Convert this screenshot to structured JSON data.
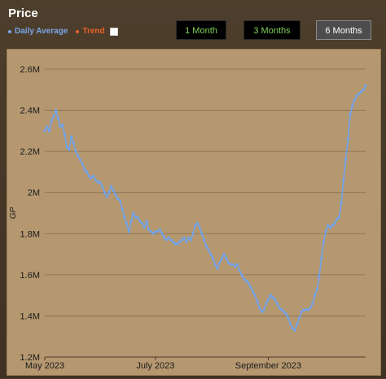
{
  "header": {
    "title": "Price",
    "legend_avg": "Daily Average",
    "legend_trend": "Trend"
  },
  "range_buttons": {
    "one_month": "1 Month",
    "three_months": "3 Months",
    "six_months": "6 Months",
    "active": "6 Months"
  },
  "colors": {
    "line": "#6fa3ee",
    "trend": "#e8632a",
    "background": "#b59870"
  },
  "chart_data": {
    "type": "line",
    "ylabel": "GP",
    "ylim": [
      1200000,
      2600000
    ],
    "y_ticks": [
      1200000,
      1400000,
      1600000,
      1800000,
      2000000,
      2200000,
      2400000,
      2600000
    ],
    "y_tick_labels": [
      "1.2M",
      "1.4M",
      "1.6M",
      "1.8M",
      "2M",
      "2.2M",
      "2.4M",
      "2.6M"
    ],
    "x_tick_labels": [
      "May 2023",
      "July 2023",
      "September 2023"
    ],
    "grid": true,
    "series": [
      {
        "name": "Daily Average",
        "values": [
          2300000,
          2320000,
          2300000,
          2350000,
          2370000,
          2400000,
          2360000,
          2320000,
          2330000,
          2280000,
          2220000,
          2210000,
          2270000,
          2240000,
          2200000,
          2180000,
          2160000,
          2140000,
          2110000,
          2100000,
          2080000,
          2070000,
          2080000,
          2060000,
          2050000,
          2050000,
          2030000,
          2000000,
          1980000,
          2000000,
          2030000,
          2010000,
          1990000,
          1970000,
          1960000,
          1920000,
          1880000,
          1850000,
          1810000,
          1860000,
          1900000,
          1880000,
          1880000,
          1860000,
          1850000,
          1830000,
          1860000,
          1820000,
          1810000,
          1800000,
          1810000,
          1810000,
          1820000,
          1800000,
          1780000,
          1770000,
          1780000,
          1770000,
          1760000,
          1750000,
          1750000,
          1760000,
          1770000,
          1780000,
          1760000,
          1780000,
          1770000,
          1800000,
          1840000,
          1850000,
          1830000,
          1800000,
          1770000,
          1740000,
          1720000,
          1700000,
          1680000,
          1650000,
          1630000,
          1660000,
          1680000,
          1700000,
          1680000,
          1660000,
          1650000,
          1650000,
          1640000,
          1650000,
          1620000,
          1600000,
          1580000,
          1570000,
          1560000,
          1540000,
          1520000,
          1500000,
          1470000,
          1440000,
          1420000,
          1430000,
          1460000,
          1480000,
          1500000,
          1490000,
          1480000,
          1460000,
          1440000,
          1430000,
          1420000,
          1410000,
          1390000,
          1360000,
          1340000,
          1330000,
          1360000,
          1390000,
          1420000,
          1430000,
          1430000,
          1430000,
          1440000,
          1460000,
          1500000,
          1530000,
          1590000,
          1680000,
          1760000,
          1810000,
          1840000,
          1830000,
          1840000,
          1850000,
          1870000,
          1880000,
          1950000,
          2060000,
          2160000,
          2260000,
          2380000,
          2420000,
          2450000,
          2470000,
          2480000,
          2490000,
          2500000,
          2520000
        ]
      }
    ]
  }
}
